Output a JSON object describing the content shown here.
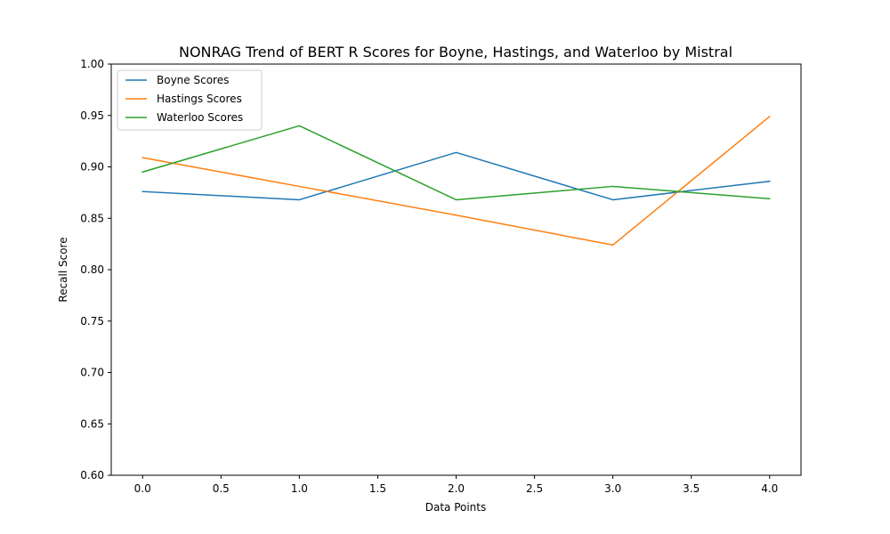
{
  "chart_data": {
    "type": "line",
    "title": "NONRAG Trend of BERT R Scores for Boyne, Hastings, and Waterloo by Mistral",
    "xlabel": "Data Points",
    "ylabel": "Recall Score",
    "x": [
      0,
      1,
      2,
      3,
      4
    ],
    "xlim": [
      -0.2,
      4.2
    ],
    "ylim": [
      0.6,
      1.0
    ],
    "xticks": [
      0.0,
      0.5,
      1.0,
      1.5,
      2.0,
      2.5,
      3.0,
      3.5,
      4.0
    ],
    "xtick_labels": [
      "0.0",
      "0.5",
      "1.0",
      "1.5",
      "2.0",
      "2.5",
      "3.0",
      "3.5",
      "4.0"
    ],
    "yticks": [
      0.6,
      0.65,
      0.7,
      0.75,
      0.8,
      0.85,
      0.9,
      0.95,
      1.0
    ],
    "ytick_labels": [
      "0.60",
      "0.65",
      "0.70",
      "0.75",
      "0.80",
      "0.85",
      "0.90",
      "0.95",
      "1.00"
    ],
    "grid": false,
    "legend_position": "top-left",
    "series": [
      {
        "name": "Boyne Scores",
        "color": "#1f77b4",
        "values": [
          0.876,
          0.868,
          0.914,
          0.868,
          0.886
        ]
      },
      {
        "name": "Hastings Scores",
        "color": "#ff7f0e",
        "values": [
          0.909,
          0.881,
          0.853,
          0.824,
          0.949
        ]
      },
      {
        "name": "Waterloo Scores",
        "color": "#2ca02c",
        "values": [
          0.895,
          0.94,
          0.868,
          0.881,
          0.869
        ]
      }
    ]
  }
}
